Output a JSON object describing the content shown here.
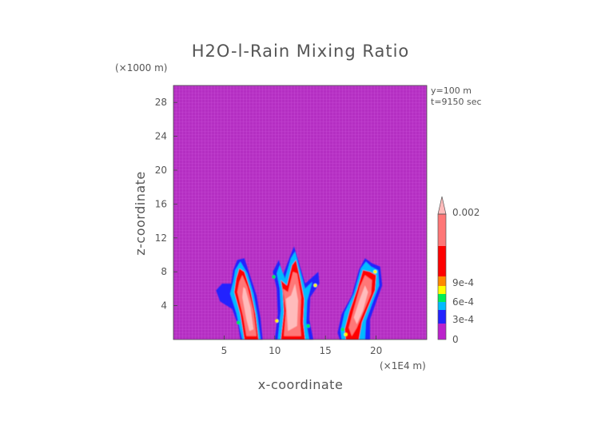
{
  "chart_data": {
    "type": "heatmap",
    "title": "H2O-l-Rain Mixing Ratio",
    "xlabel": "x-coordinate",
    "ylabel": "z-coordinate",
    "x_scale_label": "(×1E4 m)",
    "y_scale_label": "(×1000 m)",
    "xlim": [
      0,
      25
    ],
    "ylim": [
      0,
      30
    ],
    "x_ticks": [
      5,
      10,
      15,
      20
    ],
    "y_ticks": [
      4,
      8,
      12,
      16,
      20,
      24,
      28
    ],
    "annotations": [
      "y=100 m",
      "t=9150 sec"
    ],
    "background_value": 0,
    "colorbar": {
      "labels": [
        "0",
        "3e-4",
        "6e-4",
        "9e-4",
        "0.002"
      ],
      "extend": "max",
      "colors": [
        "#bb22cc",
        "#2222ff",
        "#00bbff",
        "#00ee55",
        "#ffff00",
        "#ff8800",
        "#ff0000",
        "#ff7777",
        "#ffbbbb"
      ]
    },
    "features": [
      {
        "name": "left precipitation core",
        "x_range": [
          4.2,
          8.8
        ],
        "z_range": [
          0,
          9.7
        ],
        "max_value": "0.002"
      },
      {
        "name": "central precipitation core",
        "x_range": [
          9.8,
          14.4
        ],
        "z_range": [
          0,
          11.0
        ],
        "max_value": "0.002"
      },
      {
        "name": "right precipitation core",
        "x_range": [
          16.2,
          20.6
        ],
        "z_range": [
          0,
          9.6
        ],
        "max_value": "0.002"
      }
    ]
  }
}
